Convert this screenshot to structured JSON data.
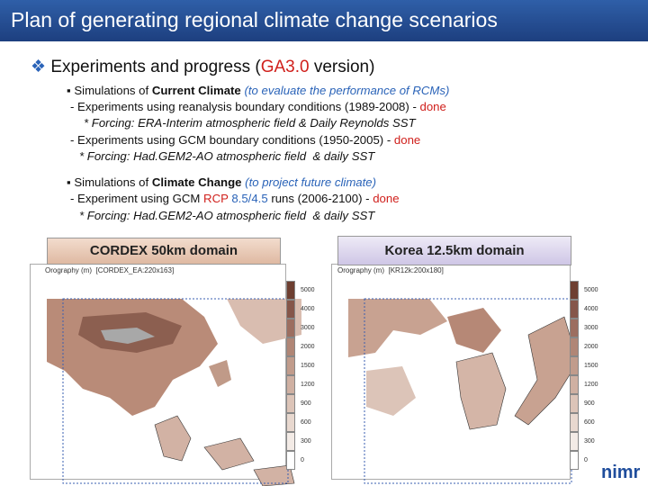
{
  "title": "Plan of generating regional climate change scenarios",
  "heading": {
    "prefix": "Experiments and progress (",
    "highlight": "GA3.0",
    "suffix": " version)"
  },
  "section1": {
    "bullet": {
      "lead": "Simulations of ",
      "bold": "Current Climate",
      "note": " (to evaluate the performance of RCMs)"
    },
    "line1": {
      "text": "- Experiments using reanalysis boundary conditions (1989-2008) - ",
      "status": "done"
    },
    "line2": "* Forcing: ERA-Interim atmospheric field & Daily Reynolds SST",
    "line3": {
      "text": "- Experiments using GCM boundary conditions (1950-2005) - ",
      "status": "done"
    },
    "line4": "* Forcing: Had.GEM2-AO atmospheric field  & daily SST"
  },
  "section2": {
    "bullet": {
      "lead": "Simulations of ",
      "bold": "Climate Change",
      "note": " (to project future climate)"
    },
    "line1": {
      "text": "- Experiment using GCM ",
      "rcp": "RCP",
      "scenario": " 8.5/4.5",
      "rest": " runs (2006-2100) - ",
      "status": "done"
    },
    "line2": "* Forcing: Had.GEM2-AO atmospheric field  & daily SST"
  },
  "panels": [
    {
      "label": "CORDEX 50km domain",
      "field": "Orography (m)",
      "grid": "[CORDEX_EA:220x163]"
    },
    {
      "label": "Korea 12.5km domain",
      "field": "Orography (m)",
      "grid": "[KR12k:200x180]"
    }
  ],
  "colorbar": [
    5000,
    4000,
    3000,
    2000,
    1500,
    1200,
    900,
    600,
    300,
    0
  ],
  "logo": "nimr"
}
